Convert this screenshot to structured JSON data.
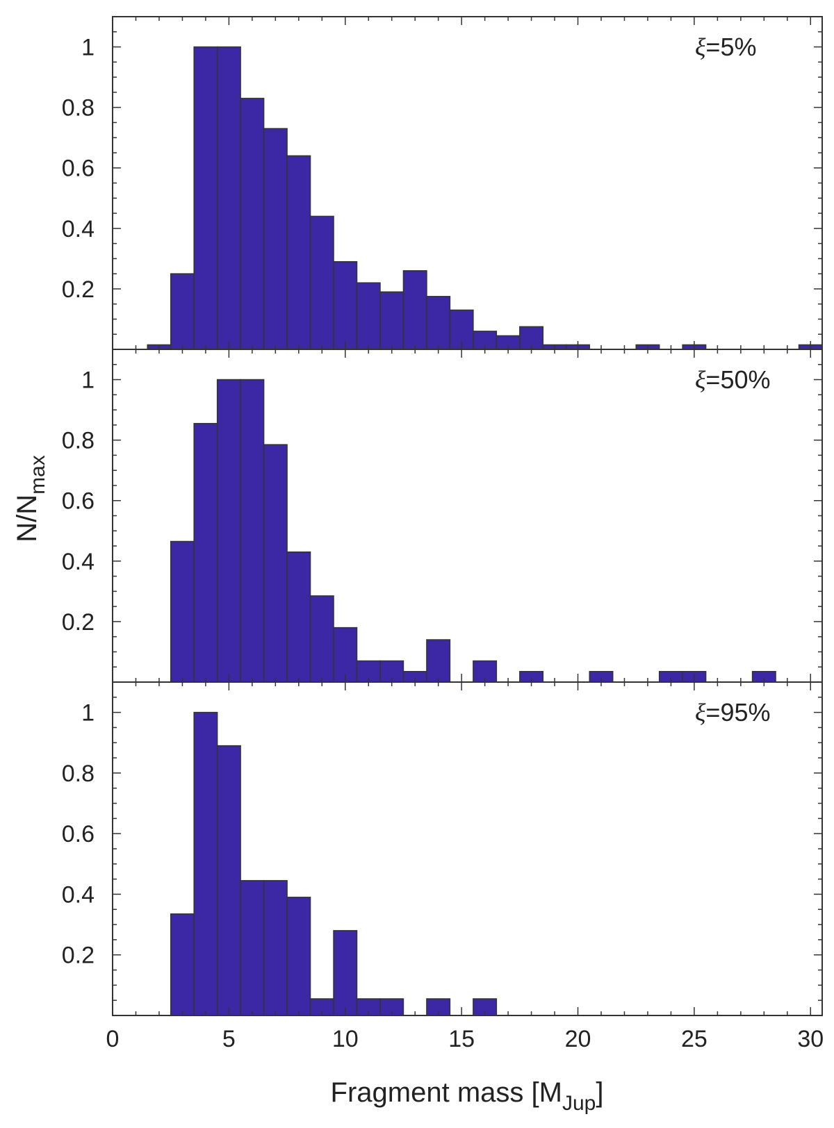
{
  "chart_data": {
    "type": "bar",
    "xlabel": {
      "main": "Fragment mass [M",
      "sub": "Jup",
      "close": "]"
    },
    "ylabel": {
      "main": "N/N",
      "sub": "max"
    },
    "xlim": [
      0,
      30.5
    ],
    "ylim": [
      0,
      1.1
    ],
    "xticks": [
      0,
      5,
      10,
      15,
      20,
      25,
      30
    ],
    "yticks": [
      0.2,
      0.4,
      0.6,
      0.8,
      1
    ],
    "ytick_labels": [
      "0.2",
      "0.4",
      "0.6",
      "0.8",
      "1"
    ],
    "bin_width": 1,
    "bar_color": "#3c28a5",
    "bar_edge_color": "#333333",
    "grid": false,
    "panels": [
      {
        "annotation": {
          "symbol": "ξ",
          "text": "=5%"
        },
        "bins": [
          {
            "x": 2,
            "y": 0.015
          },
          {
            "x": 3,
            "y": 0.25
          },
          {
            "x": 4,
            "y": 1.0
          },
          {
            "x": 5,
            "y": 1.0
          },
          {
            "x": 6,
            "y": 0.83
          },
          {
            "x": 7,
            "y": 0.73
          },
          {
            "x": 8,
            "y": 0.64
          },
          {
            "x": 9,
            "y": 0.44
          },
          {
            "x": 10,
            "y": 0.29
          },
          {
            "x": 11,
            "y": 0.22
          },
          {
            "x": 12,
            "y": 0.19
          },
          {
            "x": 13,
            "y": 0.26
          },
          {
            "x": 14,
            "y": 0.175
          },
          {
            "x": 15,
            "y": 0.13
          },
          {
            "x": 16,
            "y": 0.06
          },
          {
            "x": 17,
            "y": 0.045
          },
          {
            "x": 18,
            "y": 0.075
          },
          {
            "x": 19,
            "y": 0.015
          },
          {
            "x": 20,
            "y": 0.015
          },
          {
            "x": 23,
            "y": 0.015
          },
          {
            "x": 25,
            "y": 0.015
          },
          {
            "x": 30,
            "y": 0.015
          }
        ]
      },
      {
        "annotation": {
          "symbol": "ξ",
          "text": "=50%"
        },
        "bins": [
          {
            "x": 3,
            "y": 0.465
          },
          {
            "x": 4,
            "y": 0.855
          },
          {
            "x": 5,
            "y": 1.0
          },
          {
            "x": 6,
            "y": 1.0
          },
          {
            "x": 7,
            "y": 0.785
          },
          {
            "x": 8,
            "y": 0.43
          },
          {
            "x": 9,
            "y": 0.285
          },
          {
            "x": 10,
            "y": 0.18
          },
          {
            "x": 11,
            "y": 0.07
          },
          {
            "x": 12,
            "y": 0.07
          },
          {
            "x": 13,
            "y": 0.035
          },
          {
            "x": 14,
            "y": 0.14
          },
          {
            "x": 16,
            "y": 0.07
          },
          {
            "x": 18,
            "y": 0.035
          },
          {
            "x": 21,
            "y": 0.035
          },
          {
            "x": 24,
            "y": 0.035
          },
          {
            "x": 25,
            "y": 0.035
          },
          {
            "x": 28,
            "y": 0.035
          }
        ]
      },
      {
        "annotation": {
          "symbol": "ξ",
          "text": "=95%"
        },
        "bins": [
          {
            "x": 3,
            "y": 0.335
          },
          {
            "x": 4,
            "y": 1.0
          },
          {
            "x": 5,
            "y": 0.89
          },
          {
            "x": 6,
            "y": 0.445
          },
          {
            "x": 7,
            "y": 0.445
          },
          {
            "x": 8,
            "y": 0.39
          },
          {
            "x": 9,
            "y": 0.055
          },
          {
            "x": 10,
            "y": 0.28
          },
          {
            "x": 11,
            "y": 0.055
          },
          {
            "x": 12,
            "y": 0.055
          },
          {
            "x": 14,
            "y": 0.055
          },
          {
            "x": 16,
            "y": 0.055
          }
        ]
      }
    ]
  }
}
